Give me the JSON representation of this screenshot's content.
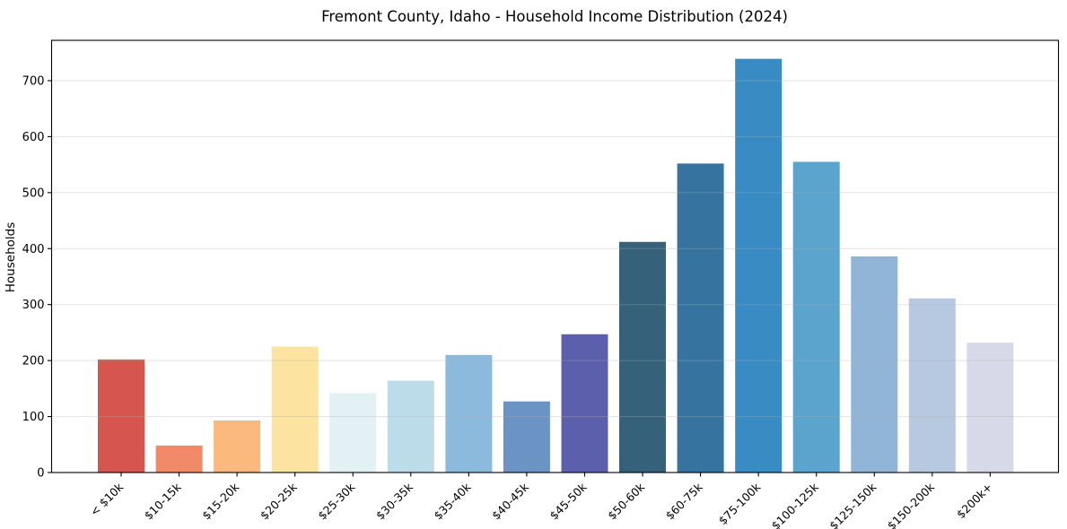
{
  "figure": {
    "background": "#ffffff"
  },
  "chart_data": {
    "type": "bar",
    "title": "Fremont County, Idaho - Household Income Distribution (2024)",
    "xlabel": "",
    "ylabel": "Households",
    "categories": [
      "< $10k",
      "$10-15k",
      "$15-20k",
      "$20-25k",
      "$25-30k",
      "$30-35k",
      "$35-40k",
      "$40-45k",
      "$45-50k",
      "$50-60k",
      "$60-75k",
      "$75-100k",
      "$100-125k",
      "$125-150k",
      "$150-200k",
      "$200k+"
    ],
    "values": [
      202,
      48,
      93,
      225,
      142,
      164,
      210,
      127,
      247,
      412,
      552,
      739,
      555,
      386,
      311,
      232
    ],
    "bar_colors": [
      "#d6564f",
      "#f18a68",
      "#fbb97e",
      "#fde3a0",
      "#e3f0f4",
      "#bddcea",
      "#8cbadd",
      "#6b93c4",
      "#5c60ac",
      "#36617a",
      "#36749f",
      "#388cc3",
      "#5ba4cd",
      "#90b5d7",
      "#b6c9e1",
      "#d7d9e8"
    ],
    "yticks": [
      0,
      100,
      200,
      300,
      400,
      500,
      600,
      700
    ],
    "ylim": [
      0,
      772
    ],
    "grid": "horizontal",
    "grid_color": "#b0b0b0",
    "axis_color": "#000000",
    "text_color": "#000000",
    "legend": "none",
    "x_tick_label_rotation_deg": 45
  }
}
